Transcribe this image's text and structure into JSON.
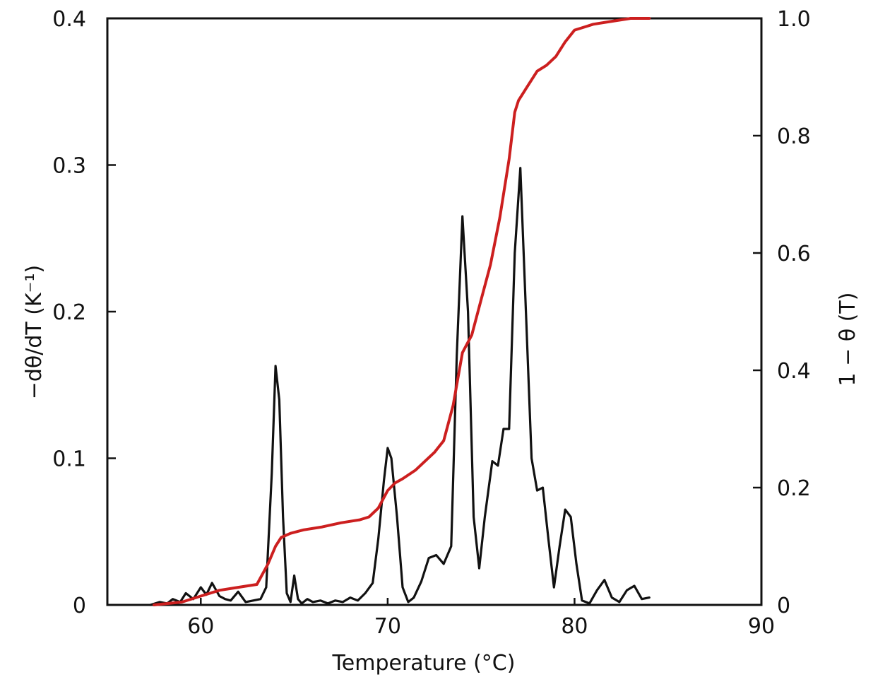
{
  "chart_data": {
    "type": "line",
    "xlabel": "Temperature (°C)",
    "ylabel_left": "−dθ/dT (K⁻¹)",
    "ylabel_right": "1 − θ (T)",
    "xlim": [
      55,
      90
    ],
    "ylim_left": [
      0,
      0.4
    ],
    "ylim_right": [
      0,
      1.0
    ],
    "x_ticks": [
      60,
      70,
      80,
      90
    ],
    "y_left_ticks": [
      "0",
      "0.1",
      "0.2",
      "0.3",
      "0.4"
    ],
    "y_right_ticks": [
      "0",
      "0.2",
      "0.4",
      "0.6",
      "0.8",
      "1.0"
    ],
    "grid": false,
    "colors": {
      "derivative": "#111111",
      "fraction": "#cc1f1f",
      "frame": "#111111"
    },
    "series": [
      {
        "axis": "left",
        "color": "#111111",
        "x": [
          57.3,
          57.8,
          58.2,
          58.5,
          58.9,
          59.2,
          59.6,
          60.0,
          60.3,
          60.6,
          61.0,
          61.3,
          61.6,
          62.0,
          62.4,
          62.8,
          63.2,
          63.5,
          63.8,
          64.0,
          64.2,
          64.4,
          64.6,
          64.8,
          65.0,
          65.2,
          65.4,
          65.7,
          66.0,
          66.4,
          66.8,
          67.2,
          67.6,
          68.0,
          68.4,
          68.8,
          69.2,
          69.5,
          69.8,
          70.0,
          70.2,
          70.5,
          70.8,
          71.1,
          71.4,
          71.8,
          72.2,
          72.6,
          73.0,
          73.4,
          73.7,
          74.0,
          74.3,
          74.6,
          74.9,
          75.2,
          75.6,
          75.9,
          76.2,
          76.5,
          76.8,
          77.1,
          77.4,
          77.7,
          78.0,
          78.3,
          78.6,
          78.9,
          79.2,
          79.5,
          79.8,
          80.1,
          80.4,
          80.8,
          81.2,
          81.6,
          82.0,
          82.4,
          82.8,
          83.2,
          83.6,
          84.0
        ],
        "values": [
          0.0,
          0.002,
          0.001,
          0.004,
          0.002,
          0.008,
          0.004,
          0.012,
          0.007,
          0.015,
          0.006,
          0.004,
          0.003,
          0.009,
          0.002,
          0.003,
          0.004,
          0.012,
          0.09,
          0.163,
          0.14,
          0.06,
          0.008,
          0.002,
          0.02,
          0.004,
          0.001,
          0.004,
          0.002,
          0.003,
          0.001,
          0.003,
          0.002,
          0.005,
          0.003,
          0.008,
          0.015,
          0.045,
          0.085,
          0.107,
          0.1,
          0.06,
          0.012,
          0.002,
          0.005,
          0.016,
          0.032,
          0.034,
          0.028,
          0.04,
          0.17,
          0.265,
          0.2,
          0.06,
          0.025,
          0.06,
          0.098,
          0.095,
          0.12,
          0.12,
          0.24,
          0.298,
          0.2,
          0.1,
          0.078,
          0.08,
          0.045,
          0.012,
          0.04,
          0.065,
          0.06,
          0.028,
          0.003,
          0.001,
          0.01,
          0.017,
          0.005,
          0.002,
          0.01,
          0.013,
          0.004,
          0.005
        ]
      },
      {
        "axis": "right",
        "color": "#cc1f1f",
        "x": [
          57.5,
          59.0,
          60.0,
          61.0,
          62.0,
          63.0,
          63.6,
          64.0,
          64.3,
          64.8,
          65.5,
          66.5,
          67.5,
          68.5,
          69.0,
          69.5,
          70.0,
          70.4,
          70.8,
          71.5,
          72.0,
          72.5,
          73.0,
          73.5,
          74.0,
          74.5,
          75.0,
          75.5,
          76.0,
          76.5,
          76.8,
          77.0,
          77.4,
          78.0,
          78.5,
          79.0,
          79.5,
          80.0,
          80.5,
          81.0,
          82.0,
          83.0,
          84.0
        ],
        "values": [
          0.0,
          0.005,
          0.015,
          0.025,
          0.03,
          0.035,
          0.07,
          0.1,
          0.115,
          0.122,
          0.128,
          0.133,
          0.14,
          0.145,
          0.15,
          0.165,
          0.195,
          0.208,
          0.215,
          0.23,
          0.245,
          0.26,
          0.28,
          0.34,
          0.43,
          0.46,
          0.52,
          0.58,
          0.66,
          0.76,
          0.84,
          0.86,
          0.88,
          0.91,
          0.92,
          0.935,
          0.96,
          0.98,
          0.985,
          0.99,
          0.995,
          1.0,
          1.0
        ]
      }
    ]
  }
}
